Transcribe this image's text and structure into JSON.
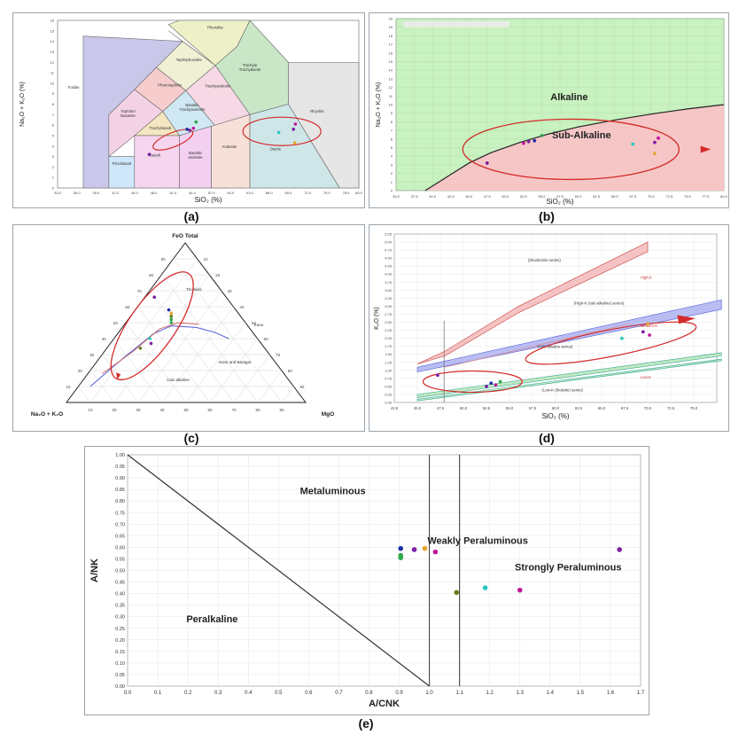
{
  "panels": [
    {
      "id": "a",
      "caption": "(a)"
    },
    {
      "id": "b",
      "caption": "(b)"
    },
    {
      "id": "c",
      "caption": "(c)"
    },
    {
      "id": "d",
      "caption": "(d)"
    },
    {
      "id": "e",
      "caption": "(e)"
    }
  ],
  "colors": {
    "purple": "#7a1fa2",
    "blue": "#1e2ea8",
    "green": "#2fa84a",
    "teal": "#27c7c0",
    "orange": "#e7a42c",
    "magenta": "#c0179c",
    "olive": "#6b7a1c",
    "red": "#d32a2a"
  },
  "chart_data": [
    {
      "id": "a",
      "type": "scatter",
      "title": "",
      "xlabel": "SiO₂ (%)",
      "ylabel": "Na₂O + K₂O (%)",
      "xlim": [
        33,
        80
      ],
      "ylim": [
        0,
        16
      ],
      "xticks": [
        "33.0",
        "36.0",
        "39.0",
        "42.0",
        "45.0",
        "48.0",
        "51.0",
        "54.0",
        "57.0",
        "60.0",
        "63.0",
        "66.0",
        "69.0",
        "72.0",
        "75.0",
        "78.0",
        "80.0"
      ],
      "yticks": [
        "0",
        "1",
        "2",
        "3",
        "4",
        "5",
        "6",
        "7",
        "8",
        "9",
        "10",
        "11",
        "12",
        "13",
        "14",
        "15",
        "16"
      ],
      "fields": [
        "Foidite",
        "Phonolite",
        "Tephriphonolite",
        "Trachyte Trachydacite",
        "Phonotephrite",
        "Trachyandesite",
        "Tephrite/ Basanite",
        "Basaltic Trachyandesite",
        "Trachybasalt",
        "Rhyolite",
        "Picrobasalt",
        "Basalt",
        "Basaltic andesite",
        "Andesite",
        "Dacite"
      ],
      "points": [
        {
          "x": 47.3,
          "y": 3.2,
          "c": "purple"
        },
        {
          "x": 53.2,
          "y": 5.6,
          "c": "blue"
        },
        {
          "x": 53.6,
          "y": 5.5,
          "c": "purple"
        },
        {
          "x": 54.2,
          "y": 5.7,
          "c": "magenta"
        },
        {
          "x": 54.6,
          "y": 6.3,
          "c": "green"
        },
        {
          "x": 67.5,
          "y": 5.3,
          "c": "teal"
        },
        {
          "x": 69.8,
          "y": 5.6,
          "c": "purple"
        },
        {
          "x": 70.1,
          "y": 6.1,
          "c": "magenta"
        },
        {
          "x": 70.0,
          "y": 4.3,
          "c": "orange"
        }
      ]
    },
    {
      "id": "b",
      "type": "scatter",
      "title": "",
      "xlabel": "SiO₂ (%)",
      "ylabel": "Na₂O + K₂O (%)",
      "xlim": [
        35,
        80
      ],
      "ylim": [
        0,
        20
      ],
      "xticks": [
        "35.0",
        "37.5",
        "40.0",
        "42.5",
        "45.0",
        "47.5",
        "50.0",
        "52.5",
        "55.0",
        "57.5",
        "60.0",
        "62.5",
        "65.0",
        "67.5",
        "70.0",
        "72.5",
        "75.0",
        "77.5",
        "80.0"
      ],
      "yticks": [
        "0",
        "1",
        "2",
        "3",
        "4",
        "5",
        "6",
        "7",
        "8",
        "9",
        "10",
        "11",
        "12",
        "13",
        "14",
        "15",
        "16",
        "17",
        "18",
        "19",
        "20"
      ],
      "fields": [
        "Alkaline",
        "Sub-Alkaline"
      ],
      "points": [
        {
          "x": 47.5,
          "y": 3.2,
          "c": "purple"
        },
        {
          "x": 52.5,
          "y": 5.5,
          "c": "magenta"
        },
        {
          "x": 53.2,
          "y": 5.7,
          "c": "purple"
        },
        {
          "x": 54.0,
          "y": 5.8,
          "c": "blue"
        },
        {
          "x": 55.0,
          "y": 6.4,
          "c": "green"
        },
        {
          "x": 67.5,
          "y": 5.4,
          "c": "teal"
        },
        {
          "x": 70.5,
          "y": 5.6,
          "c": "purple"
        },
        {
          "x": 71.0,
          "y": 6.1,
          "c": "magenta"
        },
        {
          "x": 70.5,
          "y": 4.3,
          "c": "orange"
        }
      ]
    },
    {
      "id": "c",
      "type": "scatter",
      "title": "",
      "vertices": [
        "FeO Total",
        "Na₂O + K₂O",
        "MgO"
      ],
      "ticks": [
        "10",
        "20",
        "30",
        "40",
        "50",
        "60",
        "70",
        "80",
        "90"
      ],
      "fields": [
        "Tholeiitic",
        "Calc-alkaline",
        "Irvine and Baragar",
        "Kuno"
      ],
      "points": [
        {
          "feo": 66,
          "alk": 30,
          "c": "purple"
        },
        {
          "feo": 58,
          "alk": 28,
          "c": "blue"
        },
        {
          "feo": 56,
          "alk": 28,
          "c": "orange"
        },
        {
          "feo": 54,
          "alk": 29,
          "c": "olive"
        },
        {
          "feo": 52,
          "alk": 30,
          "c": "green"
        },
        {
          "feo": 50,
          "alk": 31,
          "c": "green"
        },
        {
          "feo": 40,
          "alk": 45,
          "c": "teal"
        },
        {
          "feo": 37,
          "alk": 46,
          "c": "purple"
        },
        {
          "feo": 34,
          "alk": 52,
          "c": "olive"
        }
      ]
    },
    {
      "id": "d",
      "type": "scatter",
      "title": "",
      "xlabel": "SiO₂ (%)",
      "ylabel": "K₂O (%)",
      "xlim": [
        42.5,
        77.5
      ],
      "ylim": [
        0,
        5.25
      ],
      "xticks": [
        "42.5",
        "45.0",
        "47.5",
        "50.0",
        "52.5",
        "55.0",
        "57.5",
        "60.0",
        "62.5",
        "65.0",
        "67.5",
        "70.0",
        "72.5",
        "75.0"
      ],
      "yticks": [
        "0.00",
        "0.25",
        "0.50",
        "0.75",
        "1.00",
        "1.25",
        "1.50",
        "1.75",
        "2.00",
        "2.25",
        "2.50",
        "2.75",
        "3.00",
        "3.25",
        "3.50",
        "3.75",
        "4.00",
        "4.25",
        "4.50",
        "4.75",
        "5.00",
        "5.25"
      ],
      "fields": [
        "(Shoshonite series)",
        "High-K",
        "(High-K (calc-alkaline) series)",
        "Medium-K",
        "(Calc-alkaline series)",
        "Low-K",
        "(Low-K (tholeiite) series)"
      ],
      "points": [
        {
          "x": 47.2,
          "y": 0.85,
          "c": "purple"
        },
        {
          "x": 53.0,
          "y": 0.6,
          "c": "blue"
        },
        {
          "x": 53.5,
          "y": 0.55,
          "c": "magenta"
        },
        {
          "x": 54.0,
          "y": 0.65,
          "c": "green"
        },
        {
          "x": 52.5,
          "y": 0.5,
          "c": "purple"
        },
        {
          "x": 67.2,
          "y": 2.0,
          "c": "teal"
        },
        {
          "x": 69.5,
          "y": 2.2,
          "c": "purple"
        },
        {
          "x": 70.0,
          "y": 2.45,
          "c": "orange"
        },
        {
          "x": 70.2,
          "y": 2.1,
          "c": "magenta"
        }
      ]
    },
    {
      "id": "e",
      "type": "scatter",
      "title": "",
      "xlabel": "A/CNK",
      "ylabel": "A/NK",
      "xlim": [
        0,
        1.7
      ],
      "ylim": [
        0,
        1.0
      ],
      "xticks": [
        "0.0",
        "0.1",
        "0.2",
        "0.3",
        "0.4",
        "0.5",
        "0.6",
        "0.7",
        "0.8",
        "0.9",
        "1.0",
        "1.1",
        "1.2",
        "1.3",
        "1.4",
        "1.5",
        "1.6",
        "1.7"
      ],
      "yticks": [
        "0.00",
        "0.05",
        "0.10",
        "0.15",
        "0.20",
        "0.25",
        "0.30",
        "0.35",
        "0.40",
        "0.45",
        "0.50",
        "0.55",
        "0.60",
        "0.65",
        "0.70",
        "0.75",
        "0.80",
        "0.85",
        "0.90",
        "0.95",
        "1.00"
      ],
      "fields": [
        "Metaluminous",
        "Weakly Peraluminous",
        "Strongly Peraluminous",
        "Peralkaline"
      ],
      "points": [
        {
          "x": 0.905,
          "y": 0.595,
          "c": "blue"
        },
        {
          "x": 0.905,
          "y": 0.565,
          "c": "green"
        },
        {
          "x": 0.905,
          "y": 0.555,
          "c": "green"
        },
        {
          "x": 0.95,
          "y": 0.59,
          "c": "purple"
        },
        {
          "x": 0.985,
          "y": 0.595,
          "c": "orange"
        },
        {
          "x": 1.02,
          "y": 0.58,
          "c": "magenta"
        },
        {
          "x": 1.09,
          "y": 0.405,
          "c": "olive"
        },
        {
          "x": 1.185,
          "y": 0.425,
          "c": "teal"
        },
        {
          "x": 1.3,
          "y": 0.415,
          "c": "magenta"
        },
        {
          "x": 1.63,
          "y": 0.59,
          "c": "purple"
        }
      ]
    }
  ]
}
